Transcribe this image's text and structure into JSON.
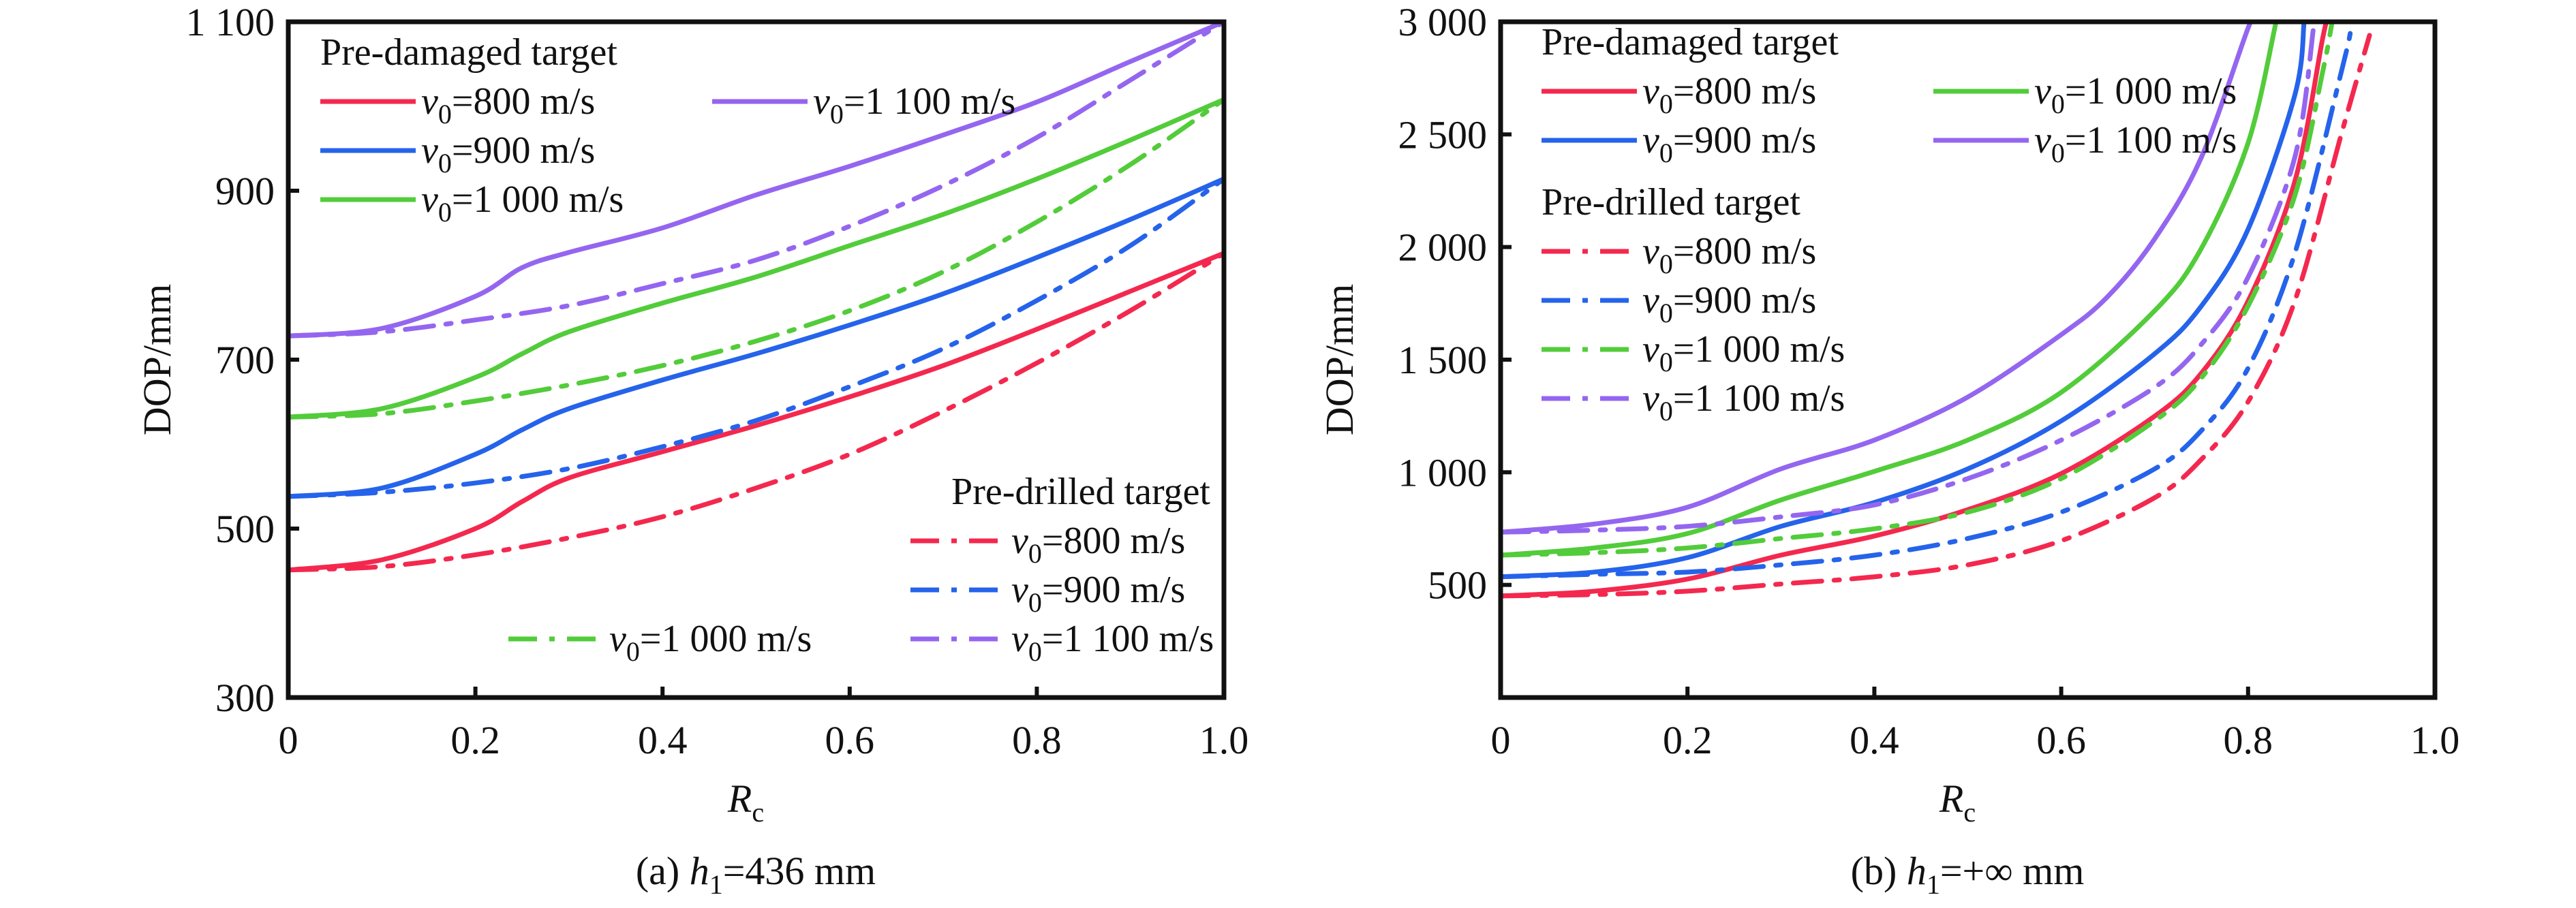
{
  "chart_data": [
    {
      "type": "line",
      "panel": "a",
      "caption": {
        "prefix": "(a) ",
        "var": "h",
        "sub": "1",
        "suffix": "=436 mm"
      },
      "xlabel": {
        "var": "R",
        "sub": "c"
      },
      "ylabel": "DOP/mm",
      "xlim": [
        0,
        1.0
      ],
      "ylim": [
        300,
        1100
      ],
      "xticks": [
        0,
        0.2,
        0.4,
        0.6,
        0.8,
        1.0
      ],
      "xtick_labels": [
        "0",
        "0.2",
        "0.4",
        "0.6",
        "0.8",
        "1.0"
      ],
      "yticks": [
        300,
        500,
        700,
        900,
        1100
      ],
      "ytick_labels": [
        "300",
        "500",
        "700",
        "900",
        "1 100"
      ],
      "legend_groups": [
        {
          "title": "Pre-damaged target",
          "placement": "top-left"
        },
        {
          "title": "Pre-drilled target",
          "placement": "bottom-right"
        }
      ],
      "series": [
        {
          "name": "v0=800 m/s",
          "group": "Pre-damaged target",
          "style": "solid",
          "color": "#f4284e",
          "x": [
            0,
            0.1,
            0.2,
            0.25,
            0.3,
            0.4,
            0.5,
            0.6,
            0.7,
            0.8,
            0.9,
            1.0
          ],
          "y": [
            451,
            463,
            500,
            532,
            560,
            591,
            622,
            656,
            693,
            736,
            781,
            826
          ]
        },
        {
          "name": "v0=900 m/s",
          "group": "Pre-damaged target",
          "style": "solid",
          "color": "#2563eb",
          "x": [
            0,
            0.1,
            0.2,
            0.25,
            0.3,
            0.4,
            0.5,
            0.6,
            0.7,
            0.8,
            0.9,
            1.0
          ],
          "y": [
            538,
            548,
            588,
            617,
            642,
            676,
            707,
            741,
            778,
            821,
            866,
            914
          ]
        },
        {
          "name": "v0=1 000 m/s",
          "group": "Pre-damaged target",
          "style": "solid",
          "color": "#52cc3a",
          "x": [
            0,
            0.1,
            0.2,
            0.25,
            0.3,
            0.4,
            0.5,
            0.6,
            0.7,
            0.8,
            0.9,
            1.0
          ],
          "y": [
            632,
            642,
            679,
            707,
            733,
            767,
            798,
            835,
            872,
            914,
            960,
            1008
          ]
        },
        {
          "name": "v0=1 100 m/s",
          "group": "Pre-damaged target",
          "style": "solid",
          "color": "#9466f0",
          "x": [
            0,
            0.1,
            0.2,
            0.25,
            0.3,
            0.4,
            0.5,
            0.6,
            0.7,
            0.8,
            0.9,
            1.0
          ],
          "y": [
            728,
            737,
            775,
            809,
            827,
            856,
            895,
            929,
            966,
            1005,
            1053,
            1100
          ]
        },
        {
          "name": "v0=800 m/s",
          "group": "Pre-drilled target",
          "style": "dashdot",
          "color": "#f4284e",
          "x": [
            0,
            0.1,
            0.2,
            0.3,
            0.4,
            0.5,
            0.6,
            0.7,
            0.8,
            0.9,
            1.0
          ],
          "y": [
            451,
            455,
            469,
            489,
            514,
            548,
            588,
            639,
            696,
            758,
            826
          ]
        },
        {
          "name": "v0=900 m/s",
          "group": "Pre-drilled target",
          "style": "dashdot",
          "color": "#2563eb",
          "x": [
            0,
            0.1,
            0.2,
            0.3,
            0.4,
            0.5,
            0.6,
            0.7,
            0.8,
            0.9,
            1.0
          ],
          "y": [
            538,
            543,
            554,
            571,
            597,
            628,
            668,
            713,
            770,
            835,
            914
          ]
        },
        {
          "name": "v0=1 000 m/s",
          "group": "Pre-drilled target",
          "style": "dashdot",
          "color": "#52cc3a",
          "x": [
            0,
            0.1,
            0.2,
            0.3,
            0.4,
            0.5,
            0.6,
            0.7,
            0.8,
            0.9,
            1.0
          ],
          "y": [
            632,
            636,
            651,
            670,
            693,
            722,
            758,
            804,
            863,
            931,
            1008
          ]
        },
        {
          "name": "v0=1 100 m/s",
          "group": "Pre-drilled target",
          "style": "dashdot",
          "color": "#9466f0",
          "x": [
            0,
            0.1,
            0.2,
            0.3,
            0.4,
            0.5,
            0.6,
            0.7,
            0.8,
            0.9,
            1.0
          ],
          "y": [
            728,
            733,
            747,
            764,
            790,
            818,
            858,
            906,
            963,
            1031,
            1100
          ]
        }
      ]
    },
    {
      "type": "line",
      "panel": "b",
      "caption": {
        "prefix": "(b) ",
        "var": "h",
        "sub": "1",
        "suffix": "=+∞ mm"
      },
      "xlabel": {
        "var": "R",
        "sub": "c"
      },
      "ylabel": "DOP/mm",
      "xlim": [
        0,
        1.0
      ],
      "ylim": [
        0,
        3000
      ],
      "xticks": [
        0,
        0.2,
        0.4,
        0.6,
        0.8,
        1.0
      ],
      "xtick_labels": [
        "0",
        "0.2",
        "0.4",
        "0.6",
        "0.8",
        "1.0"
      ],
      "yticks": [
        500,
        1000,
        1500,
        2000,
        2500,
        3000
      ],
      "ytick_labels": [
        "500",
        "1 000",
        "1 500",
        "2 000",
        "2 500",
        "3 000"
      ],
      "legend_groups": [
        {
          "title": "Pre-damaged target",
          "placement": "top-left"
        },
        {
          "title": "Pre-drilled target",
          "placement": "upper-left"
        }
      ],
      "series": [
        {
          "name": "v0=800 m/s",
          "group": "Pre-damaged target",
          "style": "solid",
          "color": "#f4284e",
          "x": [
            0,
            0.1,
            0.2,
            0.3,
            0.4,
            0.5,
            0.6,
            0.7,
            0.75,
            0.8,
            0.85,
            0.88,
            0.885
          ],
          "y": [
            451,
            472,
            526,
            632,
            717,
            834,
            994,
            1249,
            1440,
            1760,
            2291,
            2930,
            3000
          ]
        },
        {
          "name": "v0=900 m/s",
          "group": "Pre-damaged target",
          "style": "solid",
          "color": "#2563eb",
          "x": [
            0,
            0.1,
            0.2,
            0.3,
            0.4,
            0.5,
            0.6,
            0.7,
            0.75,
            0.8,
            0.85,
            0.86
          ],
          "y": [
            536,
            557,
            621,
            760,
            866,
            1015,
            1228,
            1526,
            1738,
            2079,
            2674,
            3000
          ]
        },
        {
          "name": "v0=1 000 m/s",
          "group": "Pre-damaged target",
          "style": "solid",
          "color": "#52cc3a",
          "x": [
            0,
            0.1,
            0.2,
            0.3,
            0.4,
            0.5,
            0.6,
            0.7,
            0.75,
            0.8,
            0.83
          ],
          "y": [
            632,
            664,
            728,
            877,
            1004,
            1143,
            1355,
            1717,
            1994,
            2462,
            3000
          ]
        },
        {
          "name": "v0=1 100 m/s",
          "group": "Pre-damaged target",
          "style": "solid",
          "color": "#9466f0",
          "x": [
            0,
            0.1,
            0.2,
            0.3,
            0.4,
            0.5,
            0.6,
            0.65,
            0.7,
            0.75,
            0.8,
            0.806
          ],
          "y": [
            734,
            770,
            845,
            1015,
            1143,
            1334,
            1611,
            1781,
            2036,
            2398,
            2972,
            3000
          ]
        },
        {
          "name": "v0=800 m/s",
          "group": "Pre-drilled target",
          "style": "dashdot",
          "color": "#f4284e",
          "x": [
            0,
            0.1,
            0.2,
            0.3,
            0.4,
            0.5,
            0.6,
            0.7,
            0.75,
            0.8,
            0.85,
            0.9,
            0.93
          ],
          "y": [
            451,
            457,
            472,
            504,
            536,
            589,
            696,
            887,
            1057,
            1313,
            1760,
            2504,
            2940
          ]
        },
        {
          "name": "v0=900 m/s",
          "group": "Pre-drilled target",
          "style": "dashdot",
          "color": "#2563eb",
          "x": [
            0,
            0.1,
            0.2,
            0.3,
            0.4,
            0.5,
            0.6,
            0.7,
            0.75,
            0.8,
            0.85,
            0.9,
            0.91
          ],
          "y": [
            536,
            547,
            557,
            589,
            632,
            706,
            823,
            1015,
            1185,
            1462,
            1972,
            2781,
            2962
          ]
        },
        {
          "name": "v0=1 000 m/s",
          "group": "Pre-drilled target",
          "style": "dashdot",
          "color": "#52cc3a",
          "x": [
            0,
            0.1,
            0.2,
            0.3,
            0.4,
            0.5,
            0.6,
            0.7,
            0.75,
            0.8,
            0.85,
            0.88,
            0.89
          ],
          "y": [
            632,
            643,
            664,
            706,
            749,
            823,
            972,
            1228,
            1419,
            1738,
            2228,
            2781,
            3000
          ]
        },
        {
          "name": "v0=1 100 m/s",
          "group": "Pre-drilled target",
          "style": "dashdot",
          "color": "#9466f0",
          "x": [
            0,
            0.1,
            0.2,
            0.3,
            0.4,
            0.5,
            0.6,
            0.7,
            0.75,
            0.8,
            0.85,
            0.87
          ],
          "y": [
            734,
            743,
            760,
            802,
            855,
            972,
            1143,
            1377,
            1568,
            1866,
            2398,
            2972
          ]
        }
      ]
    }
  ]
}
